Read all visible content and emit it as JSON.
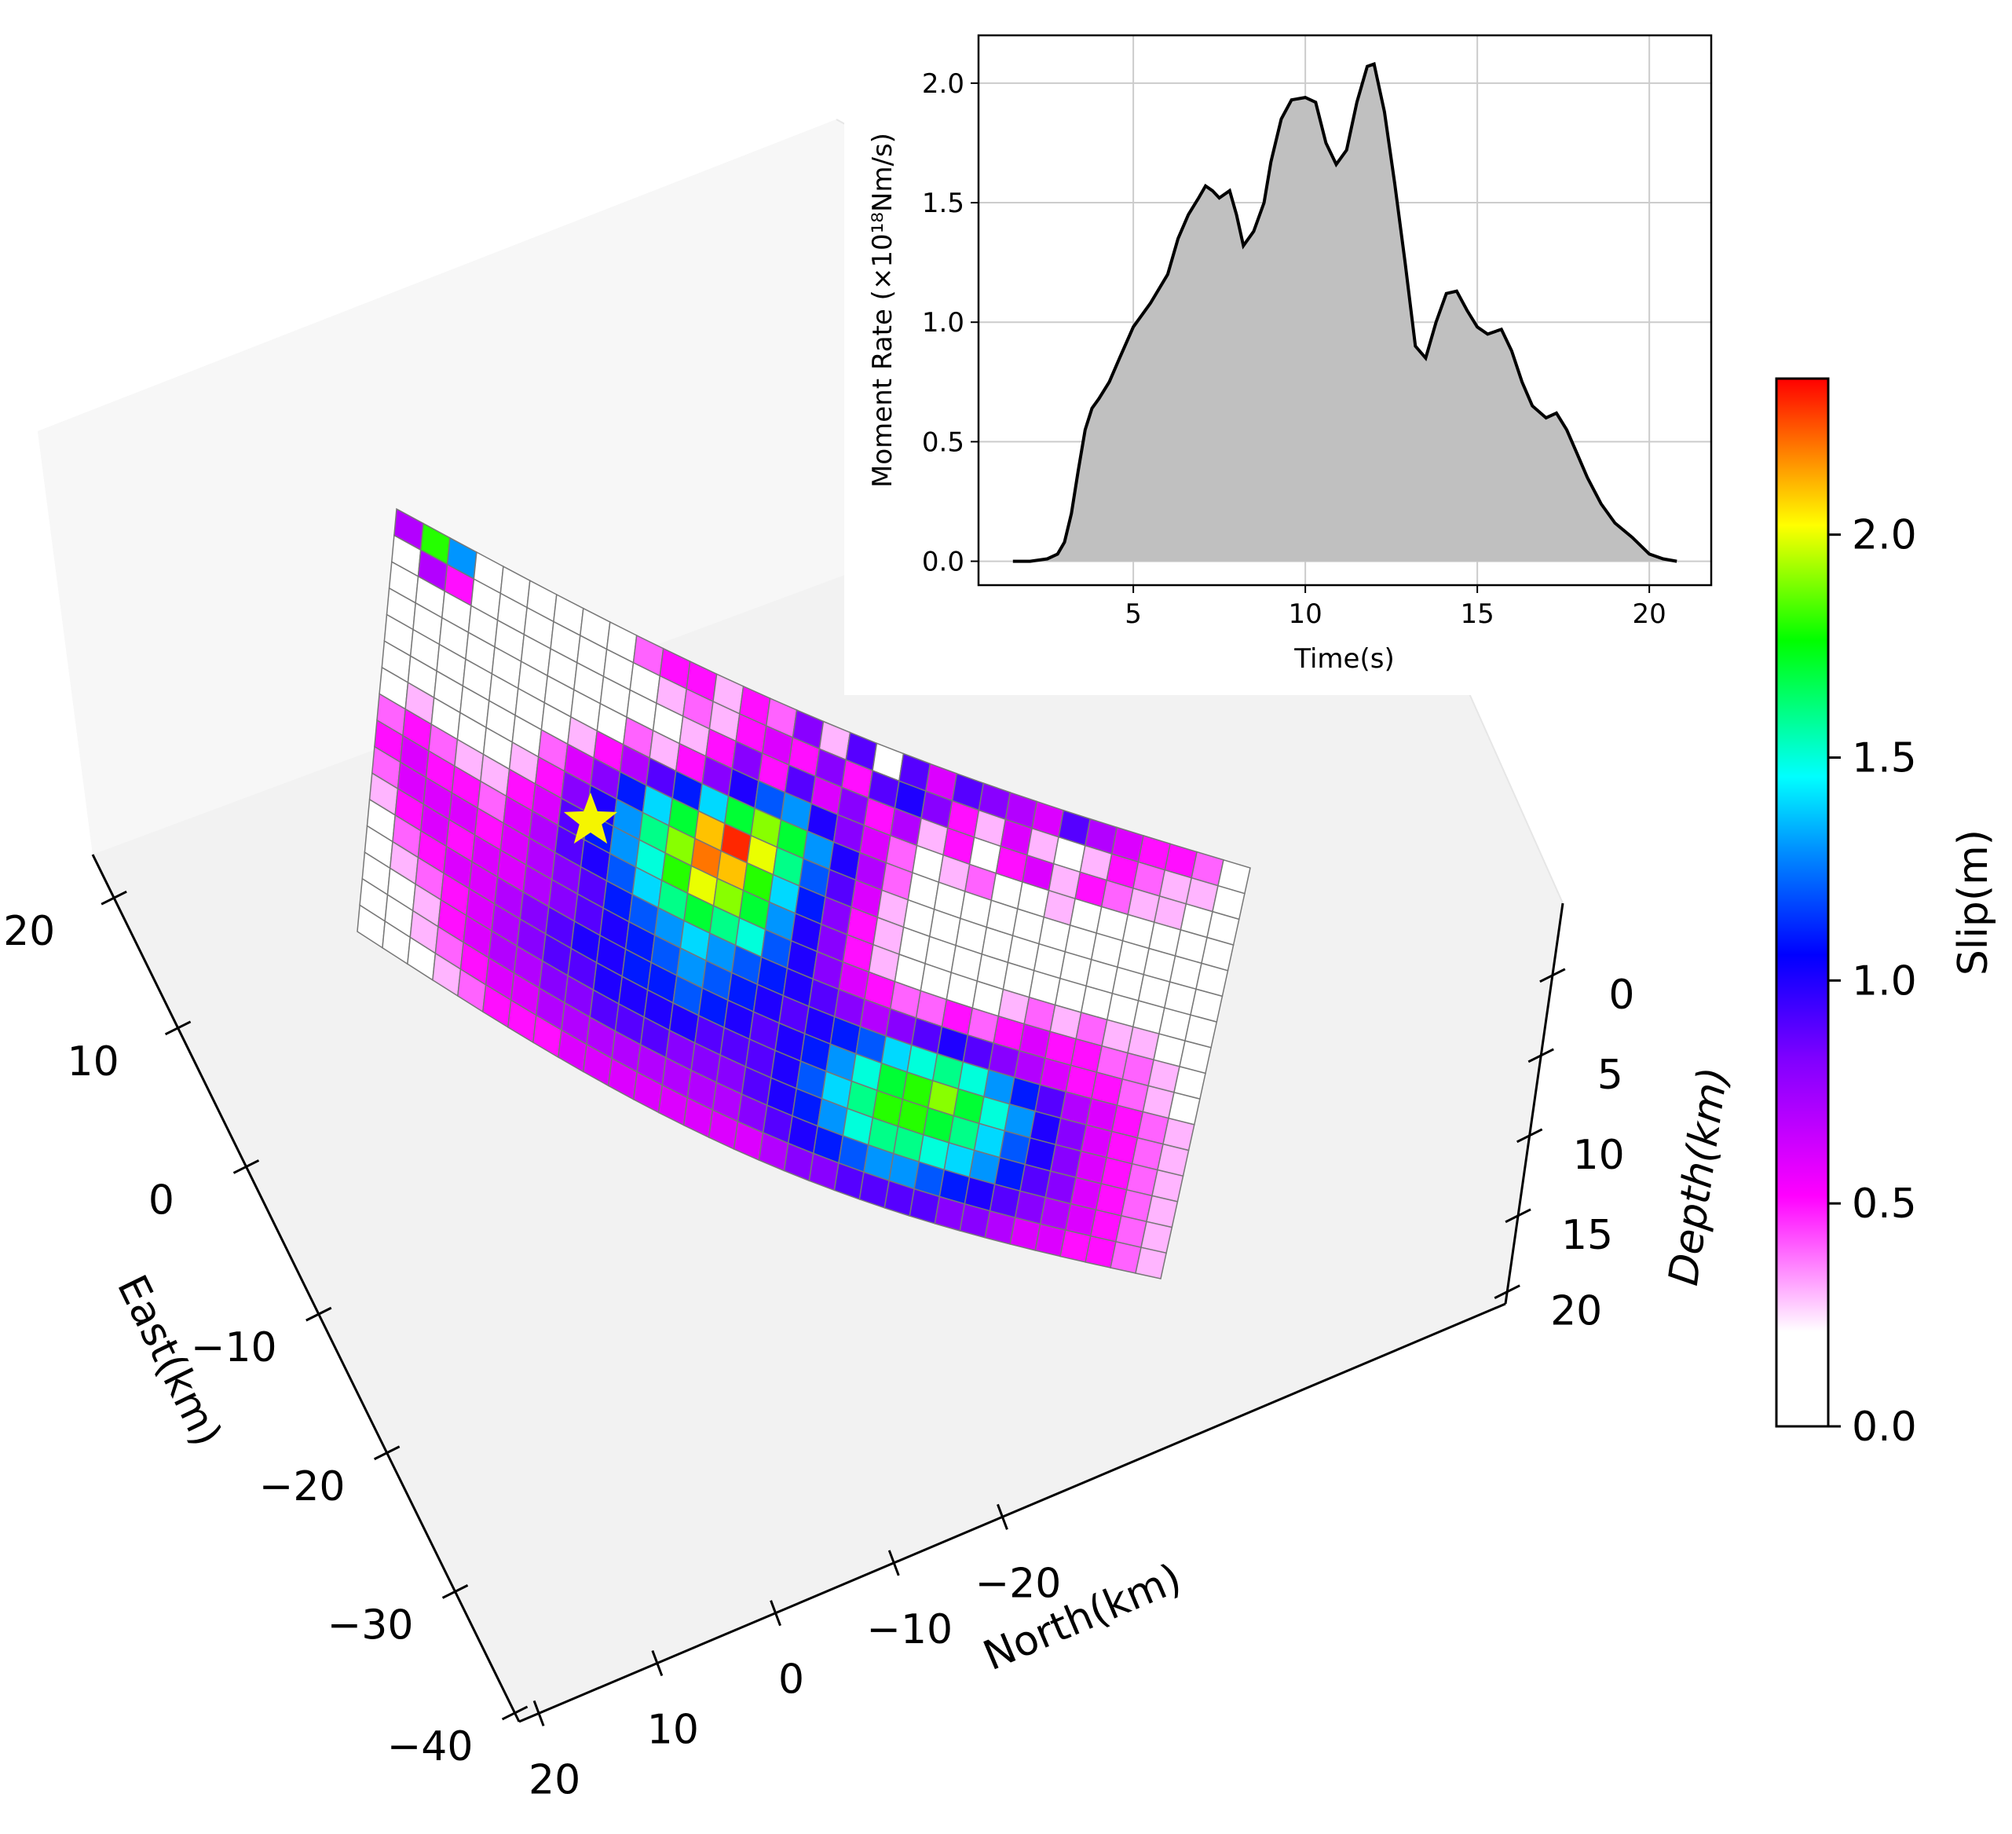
{
  "chart_data": [
    {
      "type": "heatmap",
      "title": "",
      "axes": {
        "east": {
          "label": "East(km)",
          "ticks": [
            "20",
            "10",
            "0",
            "−10",
            "−20",
            "−30",
            "−40"
          ]
        },
        "north": {
          "label": "North(km)",
          "ticks": [
            "20",
            "10",
            "0",
            "−10",
            "−20"
          ]
        },
        "depth": {
          "label": "Depth(km)",
          "ticks": [
            "0",
            "5",
            "10",
            "15",
            "20"
          ]
        }
      },
      "colorbar": {
        "label": "Slip(m)",
        "ticks": [
          0.0,
          0.5,
          1.0,
          1.5,
          2.0
        ],
        "tick_labels": [
          "0.0",
          "0.5",
          "1.0",
          "1.5",
          "2.0"
        ],
        "range": [
          0,
          2.35
        ]
      },
      "hypocenter_marker": "star",
      "colors": {
        "hypocenter": "#f5f500",
        "pane": "#f2f2f2",
        "cell_edge": "#777777"
      },
      "grid_rows": 16,
      "grid_cols": 32,
      "slip_rows": [
        [
          0.7,
          1.8,
          1.3,
          0.1,
          0.1,
          0.1,
          0.1,
          0.1,
          0.1,
          0.4,
          0.5,
          0.5,
          0.3,
          0.5,
          0.4,
          0.8,
          0.3,
          0.9,
          0.1,
          0.9,
          0.6,
          0.9,
          0.8,
          0.7,
          0.6,
          0.9,
          0.7,
          0.6,
          0.5,
          0.5,
          0.4,
          0.1
        ],
        [
          0.1,
          0.7,
          0.5,
          0.1,
          0.1,
          0.1,
          0.1,
          0.1,
          0.1,
          0.1,
          0.3,
          0.4,
          0.3,
          0.5,
          0.6,
          0.5,
          0.8,
          0.5,
          0.9,
          1.0,
          0.8,
          0.5,
          0.3,
          0.6,
          0.3,
          0.1,
          0.3,
          0.5,
          0.4,
          0.3,
          0.3,
          0.1
        ],
        [
          0.1,
          0.1,
          0.1,
          0.1,
          0.1,
          0.1,
          0.1,
          0.1,
          0.1,
          0.1,
          0.1,
          0.3,
          0.5,
          0.8,
          0.5,
          0.9,
          0.6,
          0.8,
          0.5,
          0.7,
          0.3,
          0.5,
          0.2,
          0.5,
          0.6,
          0.3,
          0.5,
          0.4,
          0.3,
          0.3,
          0.1,
          0.1
        ],
        [
          0.1,
          0.1,
          0.1,
          0.1,
          0.1,
          0.1,
          0.1,
          0.1,
          0.2,
          0.4,
          0.3,
          0.5,
          0.8,
          1.0,
          1.2,
          1.3,
          1.0,
          0.8,
          0.6,
          0.4,
          0.2,
          0.3,
          0.4,
          0.2,
          0.1,
          0.3,
          0.2,
          0.1,
          0.2,
          0.2,
          0.1,
          0.1
        ],
        [
          0.1,
          0.1,
          0.1,
          0.1,
          0.1,
          0.1,
          0.1,
          0.3,
          0.5,
          0.7,
          0.9,
          1.1,
          1.4,
          1.7,
          1.9,
          1.7,
          1.3,
          1.0,
          0.7,
          0.4,
          0.2,
          0.1,
          0.1,
          0.1,
          0.2,
          0.1,
          0.1,
          0.1,
          0.1,
          0.1,
          0.1,
          0.1
        ],
        [
          0.1,
          0.1,
          0.1,
          0.1,
          0.1,
          0.2,
          0.4,
          0.6,
          0.8,
          1.1,
          1.4,
          1.7,
          2.1,
          2.3,
          2.0,
          1.6,
          1.2,
          0.9,
          0.6,
          0.3,
          0.1,
          0.1,
          0.1,
          0.1,
          0.1,
          0.1,
          0.1,
          0.1,
          0.1,
          0.1,
          0.1,
          0.1
        ],
        [
          0.2,
          0.3,
          0.2,
          0.1,
          0.1,
          0.3,
          0.5,
          0.8,
          1.0,
          1.3,
          1.6,
          1.9,
          2.2,
          2.1,
          1.8,
          1.4,
          1.1,
          0.8,
          0.5,
          0.3,
          0.1,
          0.1,
          0.1,
          0.1,
          0.1,
          0.1,
          0.2,
          0.1,
          0.1,
          0.1,
          0.1,
          0.1
        ],
        [
          0.4,
          0.5,
          0.4,
          0.3,
          0.3,
          0.5,
          0.6,
          0.9,
          1.1,
          1.3,
          1.5,
          1.8,
          2.0,
          1.9,
          1.7,
          1.3,
          1.0,
          0.8,
          0.5,
          0.3,
          0.2,
          0.1,
          0.1,
          0.2,
          0.3,
          0.4,
          0.3,
          0.4,
          0.3,
          0.3,
          0.2,
          0.1
        ],
        [
          0.5,
          0.6,
          0.5,
          0.5,
          0.4,
          0.6,
          0.7,
          0.9,
          1.0,
          1.2,
          1.4,
          1.6,
          1.7,
          1.6,
          1.5,
          1.2,
          1.0,
          0.8,
          0.6,
          0.5,
          0.4,
          0.4,
          0.5,
          0.4,
          0.5,
          0.6,
          0.5,
          0.5,
          0.4,
          0.4,
          0.3,
          0.2
        ],
        [
          0.4,
          0.6,
          0.6,
          0.6,
          0.5,
          0.6,
          0.7,
          0.8,
          0.9,
          1.1,
          1.2,
          1.3,
          1.4,
          1.3,
          1.2,
          1.1,
          1.0,
          0.9,
          0.8,
          0.7,
          0.8,
          0.9,
          1.0,
          0.9,
          0.8,
          0.7,
          0.6,
          0.5,
          0.5,
          0.4,
          0.3,
          0.2
        ],
        [
          0.3,
          0.5,
          0.6,
          0.5,
          0.6,
          0.6,
          0.7,
          0.8,
          0.9,
          1.0,
          1.1,
          1.2,
          1.3,
          1.2,
          1.1,
          1.0,
          0.9,
          1.0,
          1.1,
          1.2,
          1.4,
          1.5,
          1.6,
          1.5,
          1.3,
          1.1,
          0.9,
          0.7,
          0.6,
          0.5,
          0.4,
          0.3
        ],
        [
          0.2,
          0.4,
          0.5,
          0.6,
          0.6,
          0.7,
          0.8,
          0.9,
          1.0,
          1.0,
          1.1,
          1.1,
          1.2,
          1.1,
          1.0,
          0.9,
          1.0,
          1.1,
          1.3,
          1.5,
          1.7,
          1.8,
          1.9,
          1.7,
          1.5,
          1.3,
          1.0,
          0.8,
          0.6,
          0.5,
          0.4,
          0.3
        ],
        [
          0.1,
          0.3,
          0.4,
          0.5,
          0.6,
          0.7,
          0.8,
          0.9,
          0.9,
          1.0,
          1.0,
          1.0,
          1.0,
          0.9,
          0.9,
          0.9,
          1.0,
          1.2,
          1.4,
          1.6,
          1.8,
          1.8,
          1.7,
          1.6,
          1.4,
          1.2,
          1.0,
          0.8,
          0.6,
          0.5,
          0.4,
          0.3
        ],
        [
          0.1,
          0.2,
          0.3,
          0.5,
          0.6,
          0.7,
          0.7,
          0.8,
          0.8,
          0.9,
          0.9,
          0.9,
          0.8,
          0.8,
          0.8,
          0.9,
          1.0,
          1.1,
          1.3,
          1.5,
          1.6,
          1.6,
          1.5,
          1.4,
          1.3,
          1.1,
          0.9,
          0.8,
          0.6,
          0.5,
          0.4,
          0.3
        ],
        [
          0.1,
          0.2,
          0.3,
          0.4,
          0.5,
          0.6,
          0.6,
          0.7,
          0.7,
          0.7,
          0.7,
          0.7,
          0.7,
          0.7,
          0.7,
          0.8,
          0.9,
          1.0,
          1.1,
          1.2,
          1.3,
          1.3,
          1.2,
          1.1,
          1.0,
          0.9,
          0.8,
          0.7,
          0.6,
          0.5,
          0.4,
          0.3
        ],
        [
          0.1,
          0.1,
          0.2,
          0.3,
          0.4,
          0.5,
          0.5,
          0.5,
          0.6,
          0.6,
          0.6,
          0.6,
          0.6,
          0.6,
          0.6,
          0.6,
          0.7,
          0.8,
          0.8,
          0.9,
          0.9,
          0.9,
          0.9,
          0.8,
          0.8,
          0.7,
          0.6,
          0.6,
          0.5,
          0.5,
          0.4,
          0.3
        ]
      ]
    },
    {
      "type": "area",
      "title": "",
      "xlabel": "Time(s)",
      "ylabel": "Moment Rate (×10¹⁸Nm/s)",
      "xlim": [
        0.5,
        21.8
      ],
      "ylim": [
        -0.1,
        2.2
      ],
      "xticks": [
        5,
        10,
        15,
        20
      ],
      "yticks": [
        0.0,
        0.5,
        1.0,
        1.5,
        2.0
      ],
      "xtick_labels": [
        "5",
        "10",
        "15",
        "20"
      ],
      "ytick_labels": [
        "0.0",
        "0.5",
        "1.0",
        "1.5",
        "2.0"
      ],
      "grid": true,
      "colors": {
        "fill": "#c0c0c0",
        "line": "#000000",
        "grid": "#cccccc"
      },
      "x": [
        1.5,
        2.0,
        2.5,
        2.8,
        3.0,
        3.2,
        3.4,
        3.6,
        3.8,
        4.0,
        4.3,
        4.6,
        5.0,
        5.5,
        6.0,
        6.3,
        6.6,
        6.9,
        7.1,
        7.3,
        7.5,
        7.8,
        8.0,
        8.2,
        8.5,
        8.8,
        9.0,
        9.3,
        9.6,
        10.0,
        10.3,
        10.6,
        10.9,
        11.2,
        11.5,
        11.8,
        12.0,
        12.3,
        12.6,
        12.9,
        13.2,
        13.5,
        13.8,
        14.1,
        14.4,
        14.7,
        15.0,
        15.3,
        15.7,
        16.0,
        16.3,
        16.6,
        17.0,
        17.3,
        17.6,
        17.9,
        18.2,
        18.6,
        19.0,
        19.5,
        20.0,
        20.4,
        20.8
      ],
      "y": [
        0.0,
        0.0,
        0.01,
        0.03,
        0.08,
        0.2,
        0.38,
        0.55,
        0.64,
        0.68,
        0.75,
        0.85,
        0.98,
        1.08,
        1.2,
        1.35,
        1.45,
        1.52,
        1.57,
        1.55,
        1.52,
        1.55,
        1.45,
        1.32,
        1.38,
        1.5,
        1.67,
        1.85,
        1.93,
        1.94,
        1.92,
        1.75,
        1.66,
        1.72,
        1.92,
        2.07,
        2.08,
        1.88,
        1.58,
        1.25,
        0.9,
        0.85,
        1.0,
        1.12,
        1.13,
        1.05,
        0.98,
        0.95,
        0.97,
        0.88,
        0.75,
        0.65,
        0.6,
        0.62,
        0.55,
        0.45,
        0.35,
        0.24,
        0.16,
        0.1,
        0.03,
        0.01,
        0.0
      ]
    }
  ]
}
